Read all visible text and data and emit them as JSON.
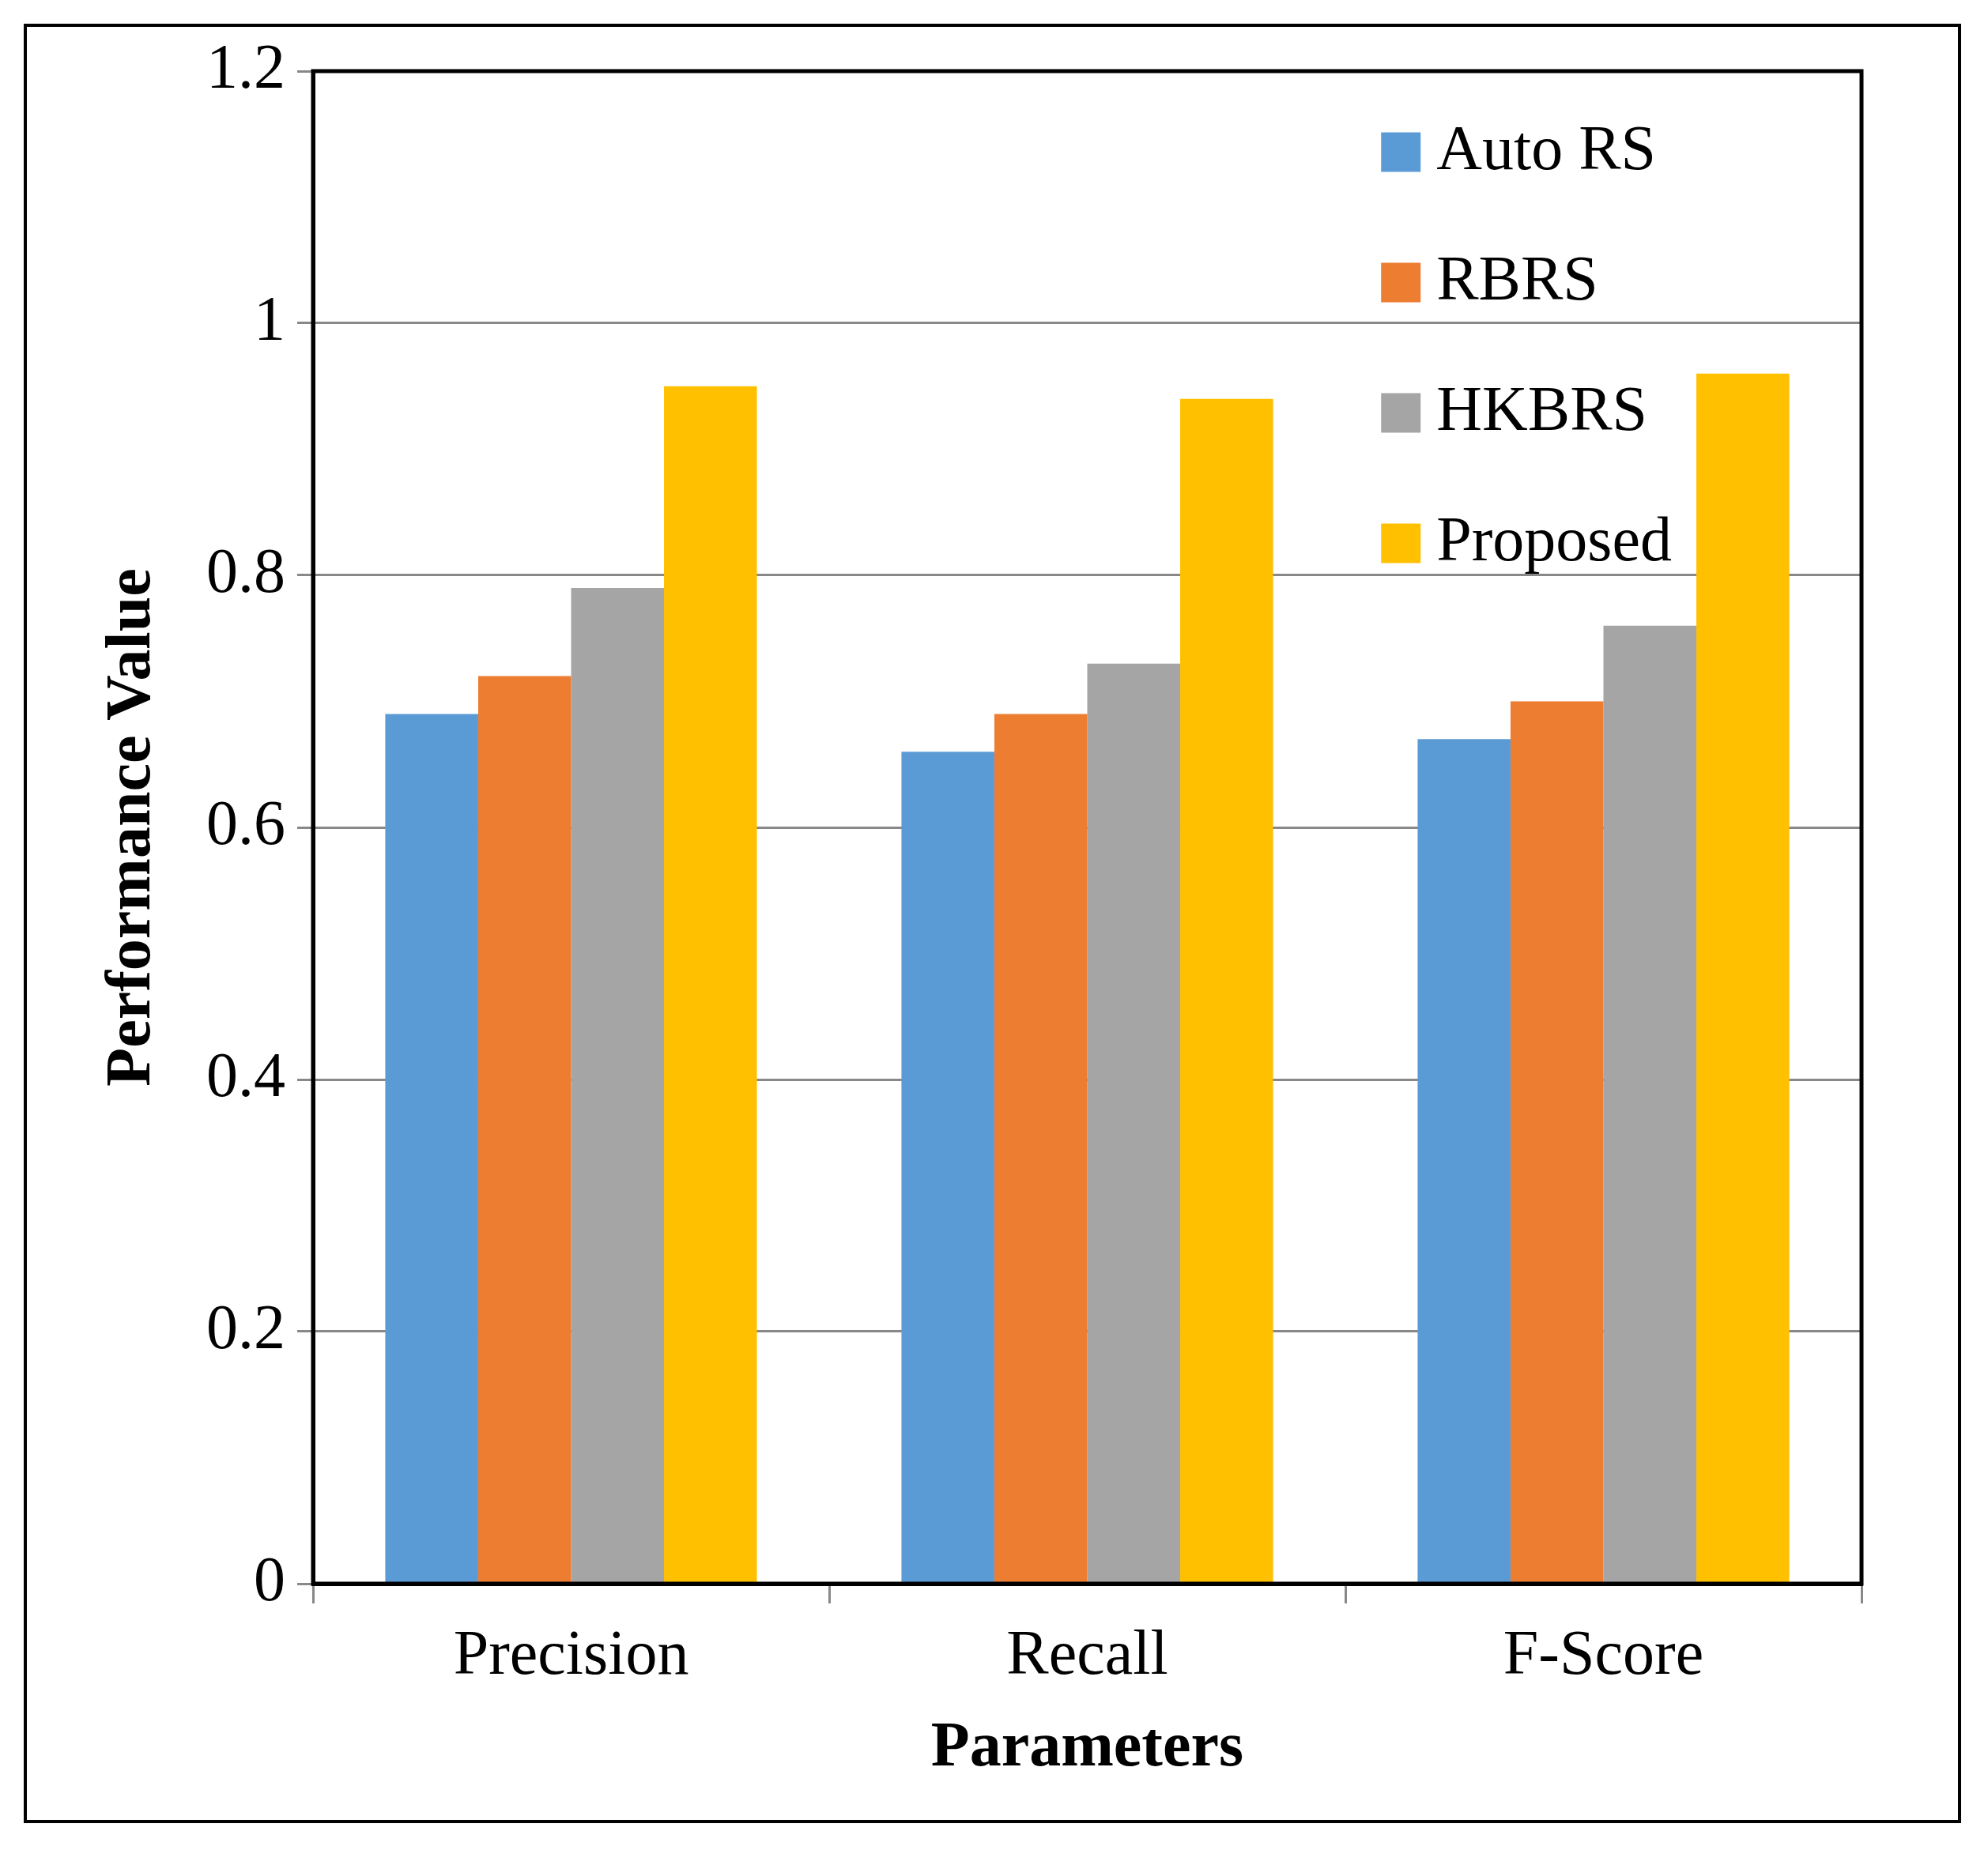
{
  "chart_data": {
    "type": "bar",
    "xlabel": "Parameters",
    "ylabel": "Performance Value",
    "categories": [
      "Precision",
      "Recall",
      "F-Score"
    ],
    "series": [
      {
        "name": "Auto RS",
        "color": "#5b9bd5",
        "values": [
          0.69,
          0.66,
          0.67
        ]
      },
      {
        "name": "RBRS",
        "color": "#ed7d31",
        "values": [
          0.72,
          0.69,
          0.7
        ]
      },
      {
        "name": "HKBRS",
        "color": "#a5a5a5",
        "values": [
          0.79,
          0.73,
          0.76
        ]
      },
      {
        "name": "Proposed",
        "color": "#ffc000",
        "values": [
          0.95,
          0.94,
          0.96
        ]
      }
    ],
    "ylim": [
      0,
      1.2
    ],
    "yticks": [
      0,
      0.2,
      0.4,
      0.6,
      0.8,
      1,
      1.2
    ],
    "grid": "y",
    "legend": "top right"
  }
}
